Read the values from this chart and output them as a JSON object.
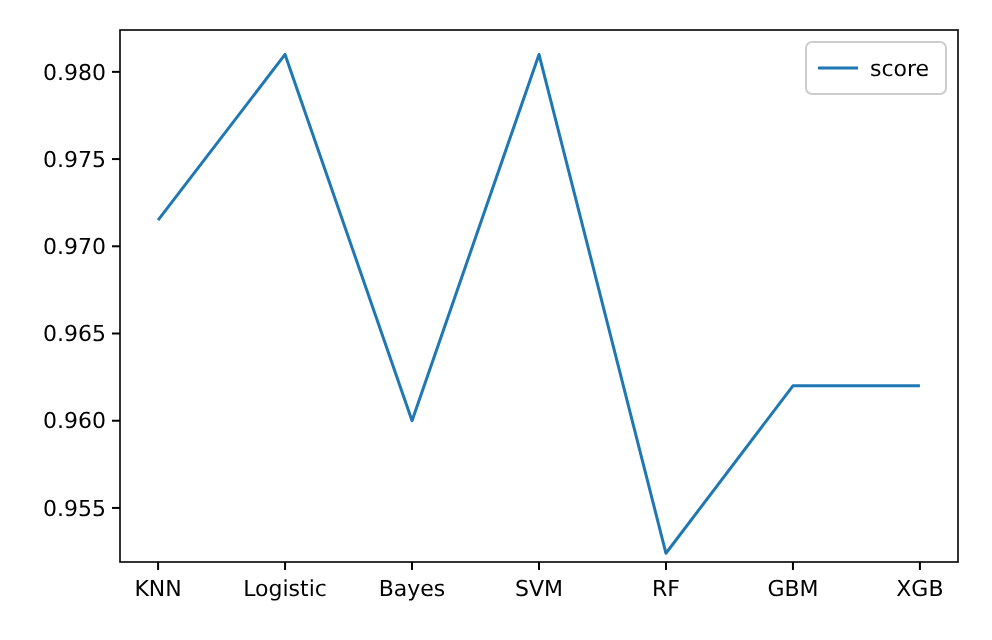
{
  "chart_data": {
    "type": "line",
    "categories": [
      "KNN",
      "Logistic",
      "Bayes",
      "SVM",
      "RF",
      "GBM",
      "XGB"
    ],
    "series": [
      {
        "name": "score",
        "color": "#1f77b4",
        "values": [
          0.9715,
          0.981,
          0.96,
          0.981,
          0.9524,
          0.962,
          0.962
        ]
      }
    ],
    "ylim": [
      0.9519,
      0.9824
    ],
    "yticks": [
      {
        "value": 0.955,
        "label": "0.955"
      },
      {
        "value": 0.96,
        "label": "0.960"
      },
      {
        "value": 0.965,
        "label": "0.965"
      },
      {
        "value": 0.97,
        "label": "0.970"
      },
      {
        "value": 0.975,
        "label": "0.975"
      },
      {
        "value": 0.98,
        "label": "0.980"
      }
    ],
    "legend": "top right",
    "grid": false,
    "marker": "none",
    "line_style": "solid"
  }
}
